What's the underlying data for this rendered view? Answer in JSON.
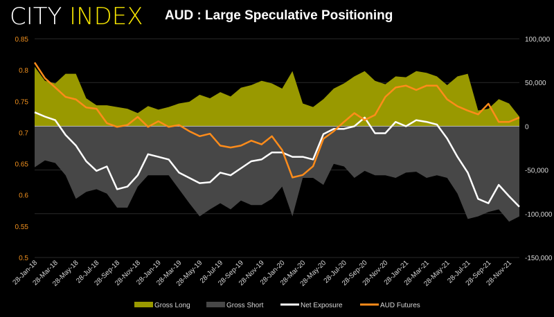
{
  "logo": {
    "part1": "CITY",
    "part2": "INDEX"
  },
  "title": "AUD : Large Speculative Positioning",
  "chart_data": {
    "type": "area",
    "title": "AUD : Large Speculative Positioning",
    "left_axis": {
      "ylim": [
        0.5,
        0.85
      ],
      "ticks": [
        "0.85",
        "0.8",
        "0.75",
        "0.7",
        "0.65",
        "0.6",
        "0.55",
        "0.5"
      ],
      "color": "#f0901e"
    },
    "right_axis": {
      "ylim": [
        -150000,
        100000
      ],
      "ticks": [
        "100,000",
        "50,000",
        "0",
        "-50,000",
        "-100,000",
        "-150,000"
      ]
    },
    "x_tick_labels": [
      "28-Jan-18",
      "28-Mar-18",
      "28-May-18",
      "28-Jul-18",
      "28-Sep-18",
      "28-Nov-18",
      "28-Jan-19",
      "28-Mar-19",
      "28-May-19",
      "28-Jul-19",
      "28-Sep-19",
      "28-Nov-19",
      "28-Jan-20",
      "28-Mar-20",
      "28-May-20",
      "28-Jul-20",
      "28-Sep-20",
      "28-Nov-20",
      "28-Jan-21",
      "28-Mar-21",
      "28-May-21",
      "28-Jul-21",
      "28-Sep-21",
      "28-Nov-21"
    ],
    "x": [
      "Jan-18",
      "Feb-18",
      "Mar-18",
      "Apr-18",
      "May-18",
      "Jun-18",
      "Jul-18",
      "Aug-18",
      "Sep-18",
      "Oct-18",
      "Nov-18",
      "Dec-18",
      "Jan-19",
      "Feb-19",
      "Mar-19",
      "Apr-19",
      "May-19",
      "Jun-19",
      "Jul-19",
      "Aug-19",
      "Sep-19",
      "Oct-19",
      "Nov-19",
      "Dec-19",
      "Jan-20",
      "Feb-20",
      "Mar-20",
      "Apr-20",
      "May-20",
      "Jun-20",
      "Jul-20",
      "Aug-20",
      "Sep-20",
      "Oct-20",
      "Nov-20",
      "Dec-20",
      "Jan-21",
      "Feb-21",
      "Mar-21",
      "Apr-21",
      "May-21",
      "Jun-21",
      "Jul-21",
      "Aug-21",
      "Sep-21",
      "Oct-21",
      "Nov-21",
      "Dec-21"
    ],
    "grid": true,
    "legend": "bottom",
    "series": [
      {
        "name": "Gross Long",
        "type": "area",
        "axis": "right",
        "color": "#999900",
        "values": [
          68000,
          52000,
          49000,
          60000,
          60000,
          32000,
          24000,
          24000,
          22000,
          20000,
          15000,
          23000,
          19000,
          22000,
          26000,
          28000,
          36000,
          32000,
          39000,
          34000,
          44000,
          47000,
          52000,
          49000,
          43000,
          63000,
          26000,
          22000,
          31000,
          43000,
          49000,
          57000,
          63000,
          52000,
          48000,
          57000,
          56000,
          63000,
          61000,
          57000,
          47000,
          57000,
          60000,
          18000,
          20000,
          31000,
          26000,
          11000
        ]
      },
      {
        "name": "Gross Short",
        "type": "area",
        "axis": "right",
        "color": "#474747",
        "values": [
          -47000,
          -39000,
          -42000,
          -56000,
          -83000,
          -75000,
          -72000,
          -77000,
          -93000,
          -93000,
          -69000,
          -56000,
          -56000,
          -56000,
          -72000,
          -88000,
          -103000,
          -95000,
          -88000,
          -95000,
          -85000,
          -90000,
          -90000,
          -83000,
          -69000,
          -103000,
          -59000,
          -59000,
          -67000,
          -43000,
          -46000,
          -59000,
          -51000,
          -56000,
          -56000,
          -59000,
          -53000,
          -52000,
          -59000,
          -56000,
          -59000,
          -77000,
          -106000,
          -103000,
          -98000,
          -95000,
          -109000,
          -103000
        ]
      },
      {
        "name": "Net Exposure",
        "type": "line",
        "axis": "right",
        "color": "#ffffff",
        "values": [
          16000,
          11000,
          7000,
          -10000,
          -22000,
          -40000,
          -51000,
          -46000,
          -72000,
          -69000,
          -56000,
          -32000,
          -35000,
          -38000,
          -53000,
          -59000,
          -65000,
          -64000,
          -53000,
          -56000,
          -48000,
          -40000,
          -38000,
          -30000,
          -30000,
          -35000,
          -35000,
          -38000,
          -9000,
          -3000,
          -3000,
          0,
          10000,
          -8000,
          -8000,
          5000,
          0,
          7000,
          5000,
          2000,
          -14000,
          -35000,
          -53000,
          -83000,
          -88000,
          -67000,
          -80000,
          -92000
        ]
      },
      {
        "name": "AUD Futures",
        "type": "line",
        "axis": "left",
        "color": "#ff8c1a",
        "values": [
          0.812,
          0.787,
          0.772,
          0.757,
          0.753,
          0.74,
          0.738,
          0.715,
          0.709,
          0.712,
          0.725,
          0.709,
          0.718,
          0.709,
          0.712,
          0.702,
          0.694,
          0.698,
          0.679,
          0.676,
          0.679,
          0.687,
          0.681,
          0.694,
          0.672,
          0.628,
          0.632,
          0.646,
          0.69,
          0.702,
          0.717,
          0.731,
          0.72,
          0.728,
          0.757,
          0.772,
          0.775,
          0.768,
          0.775,
          0.775,
          0.753,
          0.742,
          0.735,
          0.729,
          0.746,
          0.717,
          0.717,
          0.724
        ]
      }
    ]
  }
}
